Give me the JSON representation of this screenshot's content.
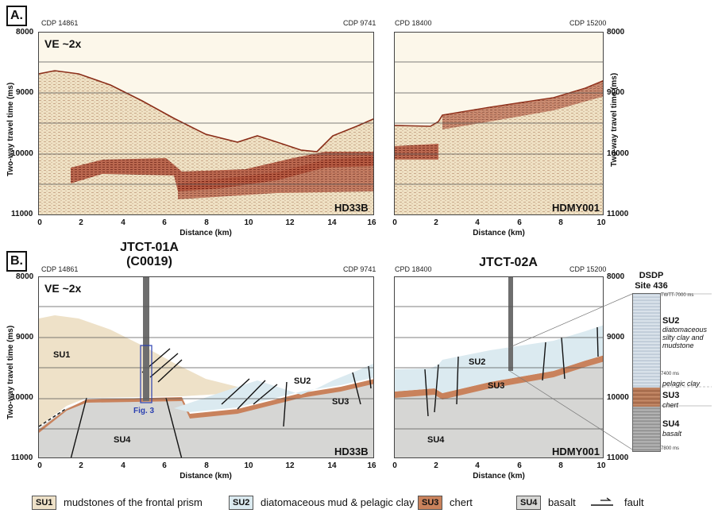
{
  "panel_a": {
    "tag": "A.",
    "left_panel": {
      "cdp_left": "CDP 14861",
      "cdp_right": "CDP 9741",
      "ve": "VE ~2x",
      "line_name": "HD33B",
      "x_ticks": [
        "0",
        "2",
        "4",
        "6",
        "8",
        "10",
        "12",
        "14",
        "16"
      ],
      "xlabel": "Distance (km)"
    },
    "right_panel": {
      "cdp_left": "CPD 18400",
      "cdp_right": "CDP 15200",
      "line_name": "HDMY001",
      "x_ticks": [
        "0",
        "2",
        "4",
        "6",
        "8",
        "10"
      ],
      "xlabel": "Distance (km)"
    },
    "y_ticks": [
      "8000",
      "9000",
      "10000",
      "11000"
    ],
    "ylabel": "Two-way travel time (ms)"
  },
  "panel_b": {
    "tag": "B.",
    "left_panel": {
      "cdp_left": "CDP 14861",
      "cdp_right": "CDP 9741",
      "ve": "VE ~2x",
      "line_name": "HD33B",
      "site": "JTCT-01A",
      "site_sub": "(C0019)",
      "fig_ref": "Fig. 3",
      "units": {
        "su1": "SU1",
        "su2": "SU2",
        "su3": "SU3",
        "su4": "SU4"
      },
      "x_ticks": [
        "0",
        "2",
        "4",
        "6",
        "8",
        "10",
        "12",
        "14",
        "16"
      ],
      "xlabel": "Distance (km)"
    },
    "right_panel": {
      "cdp_left": "CPD 18400",
      "cdp_right": "CDP 15200",
      "line_name": "HDMY001",
      "site": "JTCT-02A",
      "units": {
        "su2": "SU2",
        "su3": "SU3",
        "su4": "SU4"
      },
      "x_ticks": [
        "0",
        "2",
        "4",
        "6",
        "8",
        "10"
      ],
      "xlabel": "Distance (km)"
    },
    "y_ticks": [
      "8000",
      "9000",
      "10000",
      "11000"
    ],
    "ylabel": "Two-way travel time (ms)"
  },
  "dsdp": {
    "title": "DSDP",
    "subtitle": "Site 436",
    "twtt_top": "TWTT-7000 ms",
    "twtt_mid": "7400 ms",
    "twtt_bottom": "7800 ms",
    "su2": "SU2",
    "su2_desc": "diatomaceous silty clay and mudstone",
    "pelagic": "pelagic clay",
    "su3": "SU3",
    "su3_desc": "chert",
    "su4": "SU4",
    "su4_desc": "basalt"
  },
  "legend": {
    "su1_box": "SU1",
    "su1_text": "mudstones of the frontal prism",
    "su2_box": "SU2",
    "su2_text": "diatomaceous mud & pelagic clay",
    "su3_box": "SU3",
    "su3_text": "chert",
    "su4_box": "SU4",
    "su4_text": "basalt",
    "fault_text": "fault"
  },
  "colors": {
    "su1": "#eee1c8",
    "su2": "#dbeaf0",
    "su3": "#c9825c",
    "su4": "#d6d6d4",
    "seismic_bg": "#fcf7ea",
    "seismic_dark": "#7a1f10",
    "borehole": "#6e6e6e"
  }
}
